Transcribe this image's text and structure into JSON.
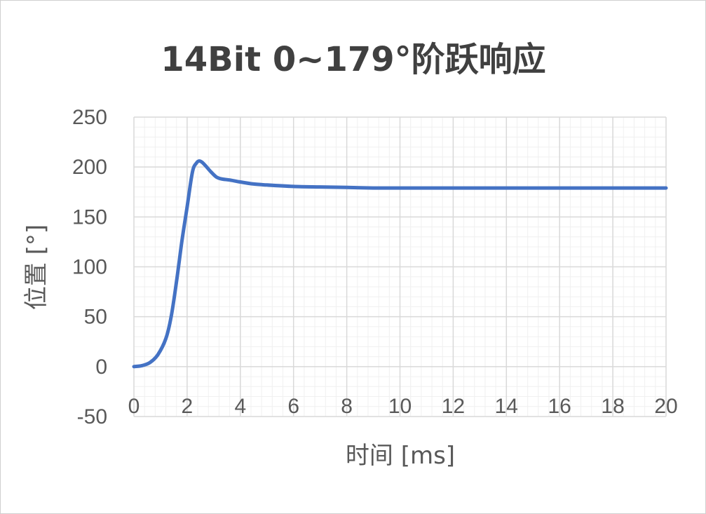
{
  "chart_data": {
    "type": "line",
    "title": "14Bit 0~179°阶跃响应",
    "xlabel": "时间 [ms]",
    "ylabel": "位置 [°]",
    "xlim": [
      0,
      20
    ],
    "ylim": [
      -50,
      250
    ],
    "x_ticks": [
      0,
      2,
      4,
      6,
      8,
      10,
      12,
      14,
      16,
      18,
      20
    ],
    "y_ticks": [
      -50,
      0,
      50,
      100,
      150,
      200,
      250
    ],
    "x_tick_labels": [
      "0",
      "2",
      "4",
      "6",
      "8",
      "10",
      "12",
      "14",
      "16",
      "18",
      "20"
    ],
    "y_tick_labels": [
      "-50",
      "0",
      "50",
      "100",
      "150",
      "200",
      "250"
    ],
    "grid": true,
    "minor_grid": true,
    "legend": "none",
    "series": [
      {
        "color": "#4472C4",
        "x": [
          0,
          0.3,
          0.6,
          0.9,
          1.2,
          1.4,
          1.6,
          1.8,
          2.0,
          2.2,
          2.35,
          2.45,
          2.55,
          2.7,
          2.9,
          3.1,
          3.3,
          3.6,
          4.0,
          4.5,
          5.0,
          6.0,
          7.0,
          8.0,
          9.0,
          10.0,
          12.0,
          14.0,
          16.0,
          18.0,
          20.0
        ],
        "y": [
          0,
          1,
          4,
          12,
          28,
          50,
          85,
          125,
          160,
          195,
          204,
          206,
          205,
          201,
          195,
          190,
          188,
          187,
          185,
          183,
          182,
          180.5,
          180,
          179.5,
          179,
          179,
          179,
          179,
          179,
          179,
          179
        ]
      }
    ]
  }
}
